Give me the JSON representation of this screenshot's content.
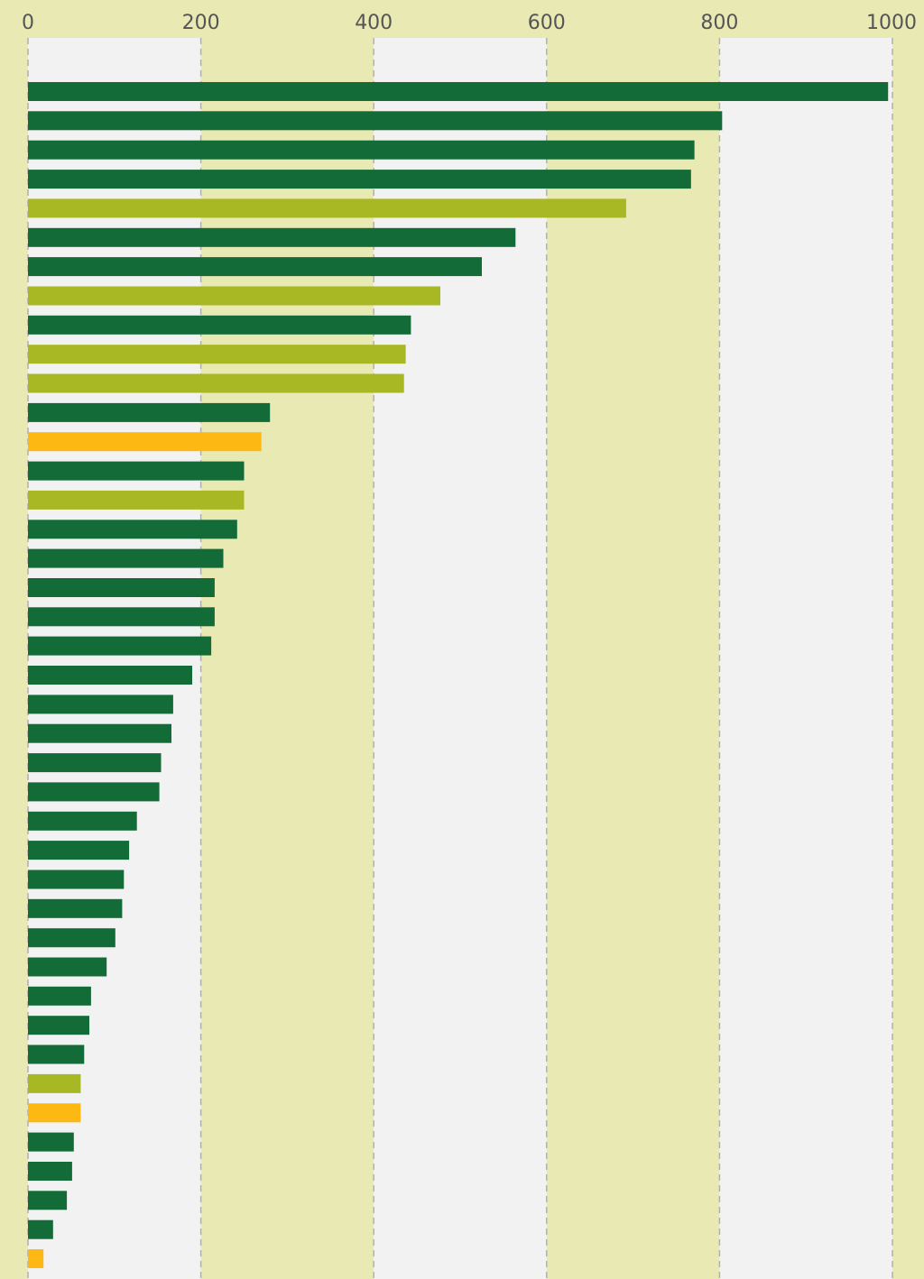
{
  "chart_data": {
    "type": "bar",
    "orientation": "horizontal",
    "title": "",
    "xlabel": "",
    "ylabel": "",
    "xlim": [
      0,
      1000
    ],
    "x_ticks": [
      "0",
      "200",
      "400",
      "600",
      "800",
      "1000"
    ],
    "x_tick_values": [
      0,
      200,
      400,
      600,
      800,
      1000
    ],
    "tick_position": "top",
    "grid": "vertical dashed",
    "legend": "none",
    "category_labels_shown": false,
    "colors": {
      "dark_green": "#136b37",
      "olive": "#a8b724",
      "orange": "#fdb813",
      "band_light": "#f2f2f2",
      "band_dark": "#e9e9b3",
      "grid": "#b0b0b0",
      "tick_text": "#555555"
    },
    "bars": [
      {
        "value": 995,
        "color": "dark_green"
      },
      {
        "value": 803,
        "color": "dark_green"
      },
      {
        "value": 771,
        "color": "dark_green"
      },
      {
        "value": 767,
        "color": "dark_green"
      },
      {
        "value": 692,
        "color": "olive"
      },
      {
        "value": 564,
        "color": "dark_green"
      },
      {
        "value": 525,
        "color": "dark_green"
      },
      {
        "value": 477,
        "color": "olive"
      },
      {
        "value": 443,
        "color": "dark_green"
      },
      {
        "value": 437,
        "color": "olive"
      },
      {
        "value": 435,
        "color": "olive"
      },
      {
        "value": 280,
        "color": "dark_green"
      },
      {
        "value": 270,
        "color": "orange"
      },
      {
        "value": 250,
        "color": "dark_green"
      },
      {
        "value": 250,
        "color": "olive"
      },
      {
        "value": 242,
        "color": "dark_green"
      },
      {
        "value": 226,
        "color": "dark_green"
      },
      {
        "value": 216,
        "color": "dark_green"
      },
      {
        "value": 216,
        "color": "dark_green"
      },
      {
        "value": 212,
        "color": "dark_green"
      },
      {
        "value": 190,
        "color": "dark_green"
      },
      {
        "value": 168,
        "color": "dark_green"
      },
      {
        "value": 166,
        "color": "dark_green"
      },
      {
        "value": 154,
        "color": "dark_green"
      },
      {
        "value": 152,
        "color": "dark_green"
      },
      {
        "value": 126,
        "color": "dark_green"
      },
      {
        "value": 117,
        "color": "dark_green"
      },
      {
        "value": 111,
        "color": "dark_green"
      },
      {
        "value": 109,
        "color": "dark_green"
      },
      {
        "value": 101,
        "color": "dark_green"
      },
      {
        "value": 91,
        "color": "dark_green"
      },
      {
        "value": 73,
        "color": "dark_green"
      },
      {
        "value": 71,
        "color": "dark_green"
      },
      {
        "value": 65,
        "color": "dark_green"
      },
      {
        "value": 61,
        "color": "olive"
      },
      {
        "value": 61,
        "color": "orange"
      },
      {
        "value": 53,
        "color": "dark_green"
      },
      {
        "value": 51,
        "color": "dark_green"
      },
      {
        "value": 45,
        "color": "dark_green"
      },
      {
        "value": 29,
        "color": "dark_green"
      },
      {
        "value": 18,
        "color": "orange"
      }
    ]
  }
}
